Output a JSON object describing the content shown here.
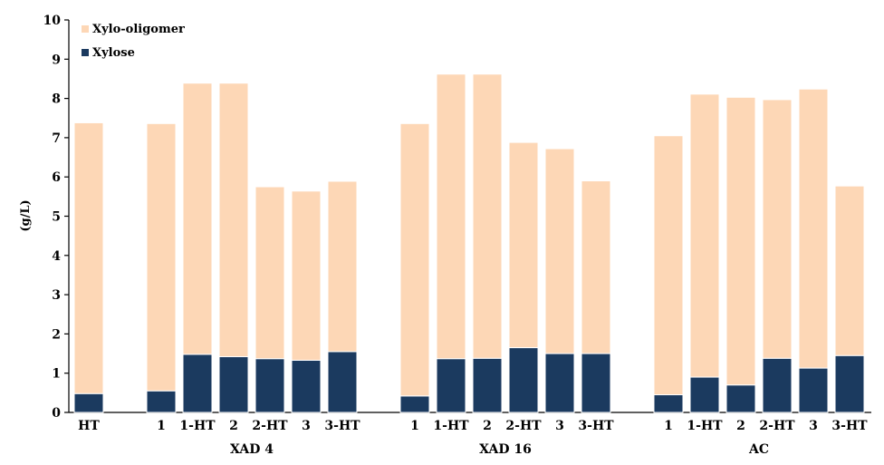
{
  "chart_data": {
    "type": "bar",
    "stacked": true,
    "ylabel": "(g/L)",
    "ylim": [
      0,
      10
    ],
    "yticks": [
      "0",
      "1",
      "2",
      "3",
      "4",
      "5",
      "6",
      "7",
      "8",
      "9",
      "10"
    ],
    "legend_position": "top-left",
    "series": [
      {
        "name": "Xylose",
        "color": "#1b3a5f",
        "values": [
          0.48,
          0.55,
          1.48,
          1.42,
          1.37,
          1.33,
          1.55,
          0.42,
          1.37,
          1.38,
          1.65,
          1.5,
          1.5,
          0.45,
          0.9,
          0.7,
          1.38,
          1.13,
          1.45
        ]
      },
      {
        "name": "Xylo-oligomer",
        "color": "#fdd7b6",
        "values": [
          6.9,
          6.81,
          6.91,
          6.97,
          4.38,
          4.31,
          4.34,
          6.94,
          7.25,
          7.24,
          5.23,
          5.22,
          4.4,
          6.6,
          7.21,
          7.33,
          6.59,
          7.11,
          4.32
        ]
      }
    ],
    "categories": [
      "HT",
      "1",
      "1-HT",
      "2",
      "2-HT",
      "3",
      "3-HT",
      "1",
      "1-HT",
      "2",
      "2-HT",
      "3",
      "3-HT",
      "1",
      "1-HT",
      "2",
      "2-HT",
      "3",
      "3-HT"
    ],
    "groups": [
      {
        "label": "",
        "start": 0,
        "count": 1
      },
      {
        "label": "XAD 4",
        "start": 1,
        "count": 6
      },
      {
        "label": "XAD 16",
        "start": 7,
        "count": 6
      },
      {
        "label": "AC",
        "start": 13,
        "count": 6
      }
    ]
  }
}
